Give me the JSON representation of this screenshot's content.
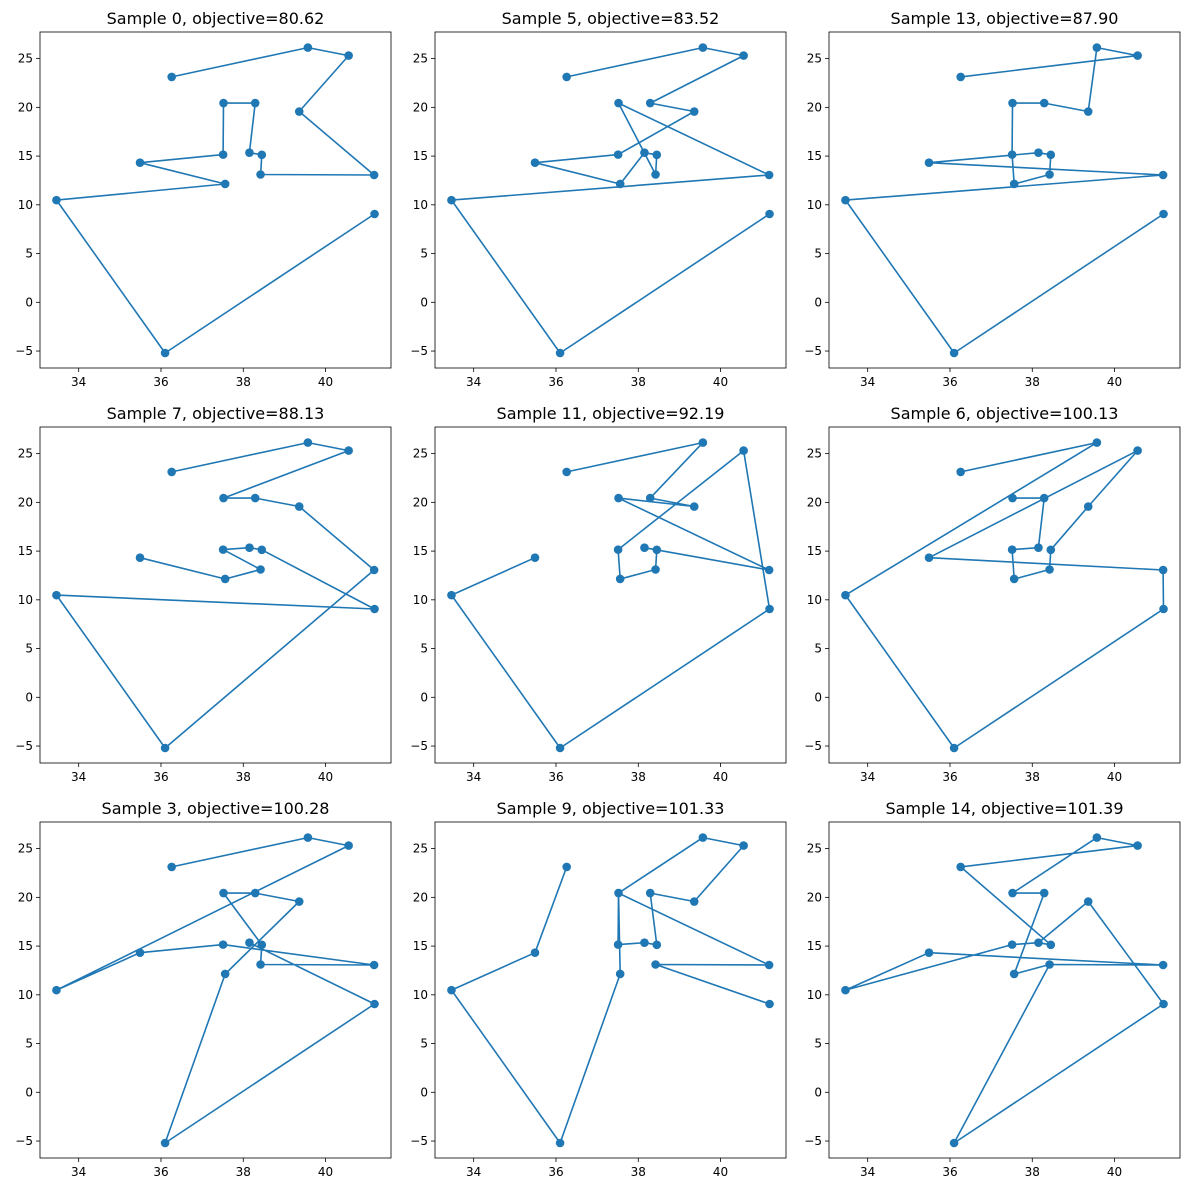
{
  "chart_data": [
    {
      "type": "line",
      "title": "Sample 0, objective=80.62",
      "xlim": [
        33.06,
        41.59
      ],
      "ylim": [
        -6.74,
        27.73
      ],
      "xticks": [
        34,
        36,
        38,
        40
      ],
      "yticks": [
        -5,
        0,
        5,
        10,
        15,
        20,
        25
      ],
      "x": [
        36.26,
        39.57,
        40.56,
        39.36,
        41.18,
        38.42,
        38.45,
        38.15,
        38.29,
        37.52,
        37.51,
        35.49,
        37.56,
        33.46,
        36.1,
        41.19
      ],
      "y": [
        23.12,
        26.13,
        25.31,
        19.57,
        13.06,
        13.11,
        15.13,
        15.35,
        20.44,
        20.44,
        15.15,
        14.32,
        12.14,
        10.48,
        -5.2,
        9.06
      ],
      "color": "#1f77b4"
    },
    {
      "type": "line",
      "title": "Sample 5, objective=83.52",
      "xlim": [
        33.06,
        41.59
      ],
      "ylim": [
        -6.74,
        27.73
      ],
      "xticks": [
        34,
        36,
        38,
        40
      ],
      "yticks": [
        -5,
        0,
        5,
        10,
        15,
        20,
        25
      ],
      "x": [
        36.26,
        39.57,
        40.56,
        38.29,
        39.36,
        37.51,
        35.49,
        37.56,
        38.15,
        38.45,
        38.42,
        37.52,
        41.18,
        33.46,
        36.1,
        41.19
      ],
      "y": [
        23.12,
        26.13,
        25.31,
        20.44,
        19.57,
        15.15,
        14.32,
        12.14,
        15.35,
        15.13,
        13.11,
        20.44,
        13.06,
        10.48,
        -5.2,
        9.06
      ],
      "color": "#1f77b4"
    },
    {
      "type": "line",
      "title": "Sample 13, objective=87.90",
      "xlim": [
        33.06,
        41.59
      ],
      "ylim": [
        -6.74,
        27.73
      ],
      "xticks": [
        34,
        36,
        38,
        40
      ],
      "yticks": [
        -5,
        0,
        5,
        10,
        15,
        20,
        25
      ],
      "x": [
        36.26,
        40.56,
        39.57,
        39.36,
        38.29,
        37.52,
        37.51,
        37.56,
        38.42,
        38.45,
        38.15,
        35.49,
        41.18,
        33.46,
        36.1,
        41.19
      ],
      "y": [
        23.12,
        25.31,
        26.13,
        19.57,
        20.44,
        20.44,
        15.15,
        12.14,
        13.11,
        15.13,
        15.35,
        14.32,
        13.06,
        10.48,
        -5.2,
        9.06
      ],
      "color": "#1f77b4"
    },
    {
      "type": "line",
      "title": "Sample 7, objective=88.13",
      "xlim": [
        33.06,
        41.59
      ],
      "ylim": [
        -6.74,
        27.73
      ],
      "xticks": [
        34,
        36,
        38,
        40
      ],
      "yticks": [
        -5,
        0,
        5,
        10,
        15,
        20,
        25
      ],
      "x": [
        36.26,
        39.57,
        40.56,
        37.52,
        38.29,
        39.36,
        41.18,
        36.1,
        33.46,
        41.19,
        38.45,
        38.15,
        37.51,
        38.42,
        37.56,
        35.49
      ],
      "y": [
        23.12,
        26.13,
        25.31,
        20.44,
        20.44,
        19.57,
        13.06,
        -5.2,
        10.48,
        9.06,
        15.13,
        15.35,
        15.15,
        13.11,
        12.14,
        14.32
      ],
      "color": "#1f77b4"
    },
    {
      "type": "line",
      "title": "Sample 11, objective=92.19",
      "xlim": [
        33.06,
        41.59
      ],
      "ylim": [
        -6.74,
        27.73
      ],
      "xticks": [
        34,
        36,
        38,
        40
      ],
      "yticks": [
        -5,
        0,
        5,
        10,
        15,
        20,
        25
      ],
      "x": [
        36.26,
        39.57,
        38.29,
        39.36,
        37.52,
        41.18,
        38.15,
        38.45,
        38.42,
        37.56,
        37.51,
        40.56,
        41.19,
        36.1,
        33.46,
        35.49
      ],
      "y": [
        23.12,
        26.13,
        20.44,
        19.57,
        20.44,
        13.06,
        15.35,
        15.13,
        13.11,
        12.14,
        15.15,
        25.31,
        9.06,
        -5.2,
        10.48,
        14.32
      ],
      "color": "#1f77b4"
    },
    {
      "type": "line",
      "title": "Sample 6, objective=100.13",
      "xlim": [
        33.06,
        41.59
      ],
      "ylim": [
        -6.74,
        27.73
      ],
      "xticks": [
        34,
        36,
        38,
        40
      ],
      "yticks": [
        -5,
        0,
        5,
        10,
        15,
        20,
        25
      ],
      "x": [
        36.26,
        39.57,
        33.46,
        36.1,
        41.19,
        41.18,
        35.49,
        40.56,
        39.36,
        38.45,
        38.42,
        37.56,
        37.51,
        38.15,
        38.29,
        37.52
      ],
      "y": [
        23.12,
        26.13,
        10.48,
        -5.2,
        9.06,
        13.06,
        14.32,
        25.31,
        19.57,
        15.13,
        13.11,
        12.14,
        15.15,
        15.35,
        20.44,
        20.44
      ],
      "color": "#1f77b4"
    },
    {
      "type": "line",
      "title": "Sample 3, objective=100.28",
      "xlim": [
        33.06,
        41.59
      ],
      "ylim": [
        -6.74,
        27.73
      ],
      "xticks": [
        34,
        36,
        38,
        40
      ],
      "yticks": [
        -5,
        0,
        5,
        10,
        15,
        20,
        25
      ],
      "x": [
        36.26,
        39.57,
        40.56,
        33.46,
        35.49,
        37.51,
        41.18,
        38.42,
        38.45,
        37.52,
        38.29,
        39.36,
        37.56,
        36.1,
        41.19,
        38.15
      ],
      "y": [
        23.12,
        26.13,
        25.31,
        10.48,
        14.32,
        15.15,
        13.06,
        13.11,
        15.13,
        20.44,
        20.44,
        19.57,
        12.14,
        -5.2,
        9.06,
        15.35
      ],
      "color": "#1f77b4"
    },
    {
      "type": "line",
      "title": "Sample 9, objective=101.33",
      "xlim": [
        33.06,
        41.59
      ],
      "ylim": [
        -6.74,
        27.73
      ],
      "xticks": [
        34,
        36,
        38,
        40
      ],
      "yticks": [
        -5,
        0,
        5,
        10,
        15,
        20,
        25
      ],
      "x": [
        36.26,
        35.49,
        33.46,
        36.1,
        37.56,
        37.52,
        39.57,
        40.56,
        39.36,
        38.29,
        38.45,
        38.15,
        37.51,
        37.52,
        41.18,
        38.42,
        41.19
      ],
      "y": [
        23.12,
        14.32,
        10.48,
        -5.2,
        12.14,
        20.44,
        26.13,
        25.31,
        19.57,
        20.44,
        15.13,
        15.35,
        15.15,
        20.44,
        13.06,
        13.11,
        9.06
      ],
      "color": "#1f77b4"
    },
    {
      "type": "line",
      "title": "Sample 14, objective=101.39",
      "xlim": [
        33.06,
        41.59
      ],
      "ylim": [
        -6.74,
        27.73
      ],
      "xticks": [
        34,
        36,
        38,
        40
      ],
      "yticks": [
        -5,
        0,
        5,
        10,
        15,
        20,
        25
      ],
      "x": [
        36.26,
        40.56,
        39.57,
        37.52,
        38.29,
        37.56,
        38.42,
        41.18,
        35.49,
        33.46,
        37.51,
        38.15,
        38.45,
        36.26
      ],
      "y": [
        23.12,
        25.31,
        26.13,
        20.44,
        20.44,
        12.14,
        13.11,
        13.06,
        14.32,
        10.48,
        15.15,
        15.35,
        15.13,
        23.12
      ],
      "extra_segments": [
        {
          "x": [
            38.15,
            39.36,
            41.19,
            36.1,
            38.42
          ],
          "y": [
            15.35,
            19.57,
            9.06,
            -5.2,
            13.11
          ]
        }
      ],
      "color": "#1f77b4"
    }
  ]
}
